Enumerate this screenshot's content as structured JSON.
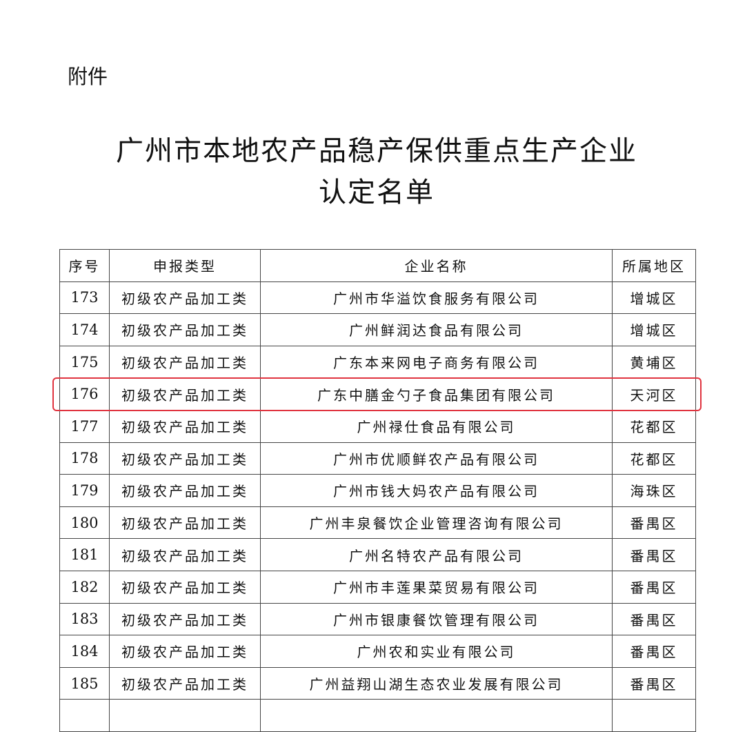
{
  "attachment_label": "附件",
  "title_line1": "广州市本地农产品稳产保供重点生产企业",
  "title_line2": "认定名单",
  "highlight_color": "#e0333f",
  "highlighted_no": "176",
  "table": {
    "headers": [
      "序号",
      "申报类型",
      "企业名称",
      "所属地区"
    ],
    "rows": [
      [
        "173",
        "初级农产品加工类",
        "广州市华溢饮食服务有限公司",
        "增城区"
      ],
      [
        "174",
        "初级农产品加工类",
        "广州鲜润达食品有限公司",
        "增城区"
      ],
      [
        "175",
        "初级农产品加工类",
        "广东本来网电子商务有限公司",
        "黄埔区"
      ],
      [
        "176",
        "初级农产品加工类",
        "广东中膳金勺子食品集团有限公司",
        "天河区"
      ],
      [
        "177",
        "初级农产品加工类",
        "广州禄仕食品有限公司",
        "花都区"
      ],
      [
        "178",
        "初级农产品加工类",
        "广州市优顺鲜农产品有限公司",
        "花都区"
      ],
      [
        "179",
        "初级农产品加工类",
        "广州市钱大妈农产品有限公司",
        "海珠区"
      ],
      [
        "180",
        "初级农产品加工类",
        "广州丰泉餐饮企业管理咨询有限公司",
        "番禺区"
      ],
      [
        "181",
        "初级农产品加工类",
        "广州名特农产品有限公司",
        "番禺区"
      ],
      [
        "182",
        "初级农产品加工类",
        "广州市丰莲果菜贸易有限公司",
        "番禺区"
      ],
      [
        "183",
        "初级农产品加工类",
        "广州市银康餐饮管理有限公司",
        "番禺区"
      ],
      [
        "184",
        "初级农产品加工类",
        "广州农和实业有限公司",
        "番禺区"
      ],
      [
        "185",
        "初级农产品加工类",
        "广州益翔山湖生态农业发展有限公司",
        "番禺区"
      ]
    ]
  }
}
